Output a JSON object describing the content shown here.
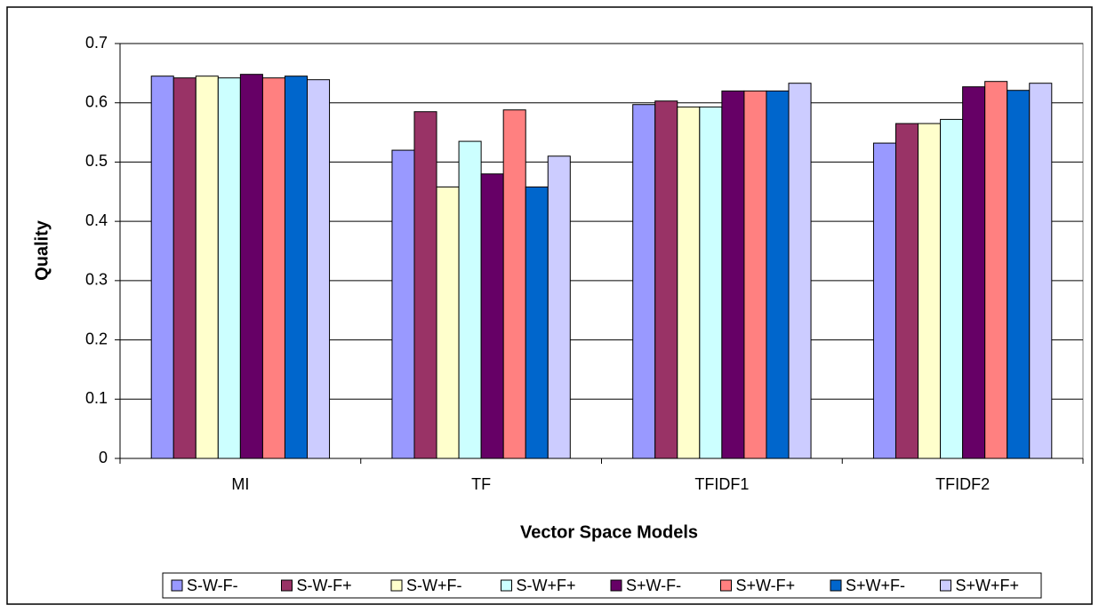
{
  "chart_data": {
    "type": "bar",
    "x_label": "Vector Space Models",
    "y_label": "Quality",
    "categories": [
      "MI",
      "TF",
      "TFIDF1",
      "TFIDF2"
    ],
    "series": [
      {
        "name": "S-W-F-",
        "color": "#9999ff",
        "values": [
          0.645,
          0.52,
          0.597,
          0.532
        ]
      },
      {
        "name": "S-W-F+",
        "color": "#993366",
        "values": [
          0.642,
          0.585,
          0.603,
          0.565
        ]
      },
      {
        "name": "S-W+F-",
        "color": "#ffffcc",
        "values": [
          0.645,
          0.458,
          0.593,
          0.565
        ]
      },
      {
        "name": "S-W+F+",
        "color": "#ccffff",
        "values": [
          0.642,
          0.535,
          0.593,
          0.572
        ]
      },
      {
        "name": "S+W-F-",
        "color": "#660066",
        "values": [
          0.648,
          0.48,
          0.62,
          0.627
        ]
      },
      {
        "name": "S+W-F+",
        "color": "#ff8080",
        "values": [
          0.642,
          0.588,
          0.62,
          0.636
        ]
      },
      {
        "name": "S+W+F-",
        "color": "#0066cc",
        "values": [
          0.645,
          0.458,
          0.62,
          0.621
        ]
      },
      {
        "name": "S+W+F+",
        "color": "#ccccff",
        "values": [
          0.639,
          0.51,
          0.633,
          0.633
        ]
      }
    ],
    "ylim": [
      0,
      0.7
    ],
    "yticks": [
      0,
      0.1,
      0.2,
      0.3,
      0.4,
      0.5,
      0.6,
      0.7
    ],
    "grid": true,
    "legend": "bottom"
  }
}
